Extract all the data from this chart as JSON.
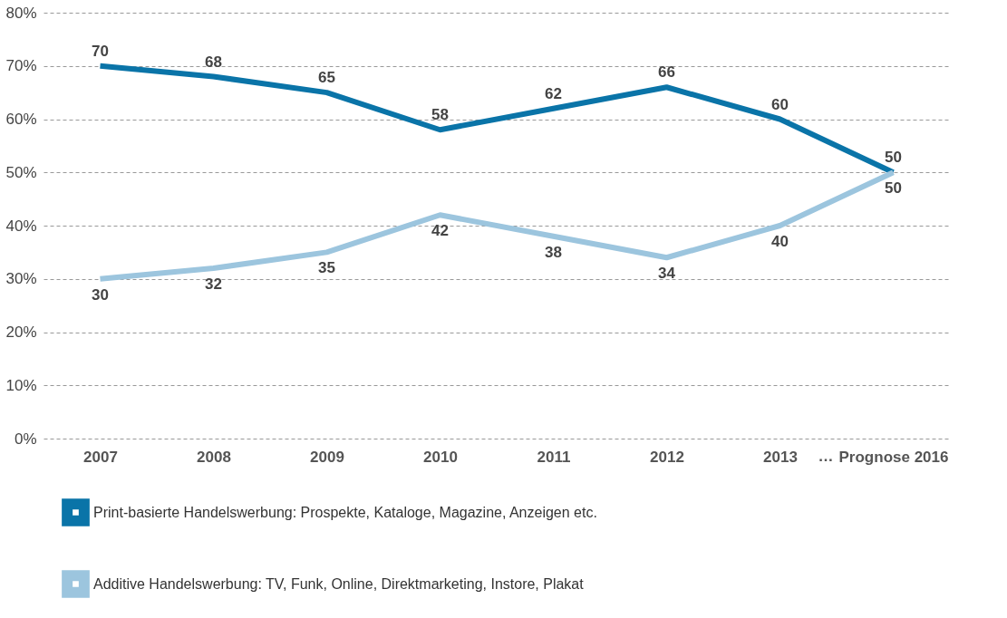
{
  "chart_data": {
    "type": "line",
    "categories": [
      "2007",
      "2008",
      "2009",
      "2010",
      "2011",
      "2012",
      "2013",
      "Prognose 2016"
    ],
    "series": [
      {
        "name": "Print-basierte Handelswerbung: Prospekte, Kataloge, Magazine, Anzeigen etc.",
        "color": "#0a74a8",
        "values": [
          70,
          68,
          65,
          58,
          62,
          66,
          60,
          50
        ]
      },
      {
        "name": "Additive Handelswerbung: TV, Funk, Online, Direktmarketing, Instore, Plakat",
        "color": "#9cc5de",
        "values": [
          30,
          32,
          35,
          42,
          38,
          34,
          40,
          50
        ]
      }
    ],
    "ylim": [
      0,
      80
    ],
    "yticks": [
      {
        "value": 0,
        "label": "0%"
      },
      {
        "value": 10,
        "label": "10%"
      },
      {
        "value": 20,
        "label": "20%"
      },
      {
        "value": 30,
        "label": "30%"
      },
      {
        "value": 40,
        "label": "40%"
      },
      {
        "value": 50,
        "label": "50%"
      },
      {
        "value": 60,
        "label": "60%"
      },
      {
        "value": 70,
        "label": "70%"
      },
      {
        "value": 80,
        "label": "80%"
      }
    ],
    "grid": "y",
    "line_style": "solid",
    "marker": "none",
    "legend": "bottom",
    "data_labels": true,
    "annotations": [
      "…"
    ]
  }
}
